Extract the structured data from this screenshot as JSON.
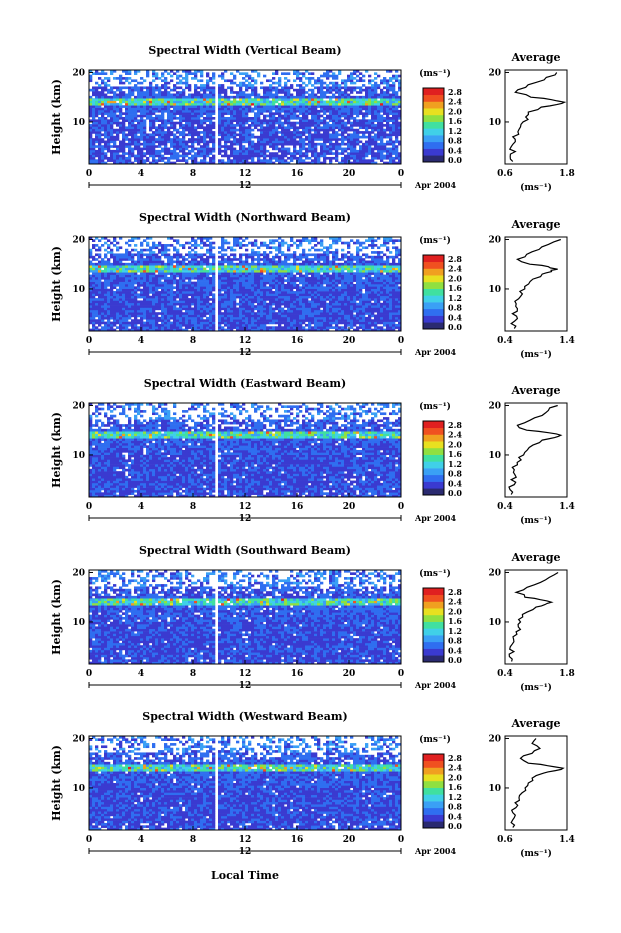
{
  "figure": {
    "xlabel": "Local Time",
    "ylabel": "Height (km)",
    "unit_label": "(ms⁻¹)",
    "date_label": "Apr 2004",
    "day_label": "12",
    "avg_title": "Average",
    "colorbar_ticks": [
      "2.8",
      "2.4",
      "2.0",
      "1.6",
      "1.2",
      "0.8",
      "0.4",
      "0.0"
    ],
    "colormap": [
      "#2a2a70",
      "#3a3ad0",
      "#2f6ef0",
      "#3aa0f5",
      "#40d0e8",
      "#40e0a0",
      "#90e040",
      "#e8e020",
      "#f0a020",
      "#f05020",
      "#e02020"
    ]
  },
  "chart_data": [
    {
      "type": "heatmap",
      "title": "Spectral Width (Vertical Beam)",
      "xlabel": "Local Time",
      "ylabel": "Height (km)",
      "xlim": [
        0,
        24
      ],
      "ylim": [
        1.5,
        20.5
      ],
      "x_ticks": [
        "0",
        "4",
        "8",
        "12",
        "16",
        "20",
        "0"
      ],
      "y_ticks": [
        "20",
        "10"
      ],
      "colorbar": {
        "label": "(ms⁻¹)",
        "range": [
          0.0,
          2.8
        ]
      },
      "gaps_hours": [
        [
          0.6,
          0.8
        ],
        [
          9.8,
          10.0
        ]
      ],
      "enhanced_layer_km": [
        13.5,
        15.0
      ],
      "average_profile": {
        "title": "Average",
        "xlim": [
          0.6,
          1.8
        ],
        "x_ticks": [
          "0.6",
          "1.8"
        ],
        "xlabel": "(ms⁻¹)",
        "height_km": [
          2,
          3,
          4,
          5,
          6,
          7,
          8,
          9,
          10,
          11,
          12,
          13,
          13.5,
          14,
          14.5,
          15,
          16,
          17,
          18,
          19,
          20
        ],
        "value": [
          0.75,
          0.7,
          0.8,
          0.72,
          0.8,
          0.75,
          0.85,
          0.9,
          0.95,
          1.0,
          1.05,
          1.3,
          1.6,
          1.75,
          1.5,
          1.1,
          0.8,
          1.0,
          1.2,
          1.4,
          1.6
        ]
      }
    },
    {
      "type": "heatmap",
      "title": "Spectral Width (Northward Beam)",
      "xlabel": "Local Time",
      "ylabel": "Height (km)",
      "xlim": [
        0,
        24
      ],
      "ylim": [
        1.5,
        20.5
      ],
      "x_ticks": [
        "0",
        "4",
        "8",
        "12",
        "16",
        "20",
        "0"
      ],
      "y_ticks": [
        "20",
        "10"
      ],
      "colorbar": {
        "label": "(ms⁻¹)",
        "range": [
          0.0,
          2.8
        ]
      },
      "gaps_hours": [
        [
          0.6,
          0.8
        ],
        [
          9.8,
          10.0
        ]
      ],
      "enhanced_layer_km": [
        13.5,
        15.0
      ],
      "average_profile": {
        "title": "Average",
        "xlim": [
          0.4,
          1.4
        ],
        "x_ticks": [
          "0.4",
          "1.4"
        ],
        "xlabel": "(ms⁻¹)",
        "height_km": [
          2,
          3,
          4,
          5,
          6,
          7,
          8,
          9,
          10,
          11,
          12,
          13,
          13.5,
          14,
          14.5,
          15,
          16,
          17,
          18,
          19,
          20
        ],
        "value": [
          0.55,
          0.5,
          0.6,
          0.52,
          0.6,
          0.58,
          0.62,
          0.68,
          0.72,
          0.78,
          0.85,
          1.0,
          1.15,
          1.25,
          1.1,
          0.8,
          0.6,
          0.75,
          0.95,
          1.1,
          1.3
        ]
      }
    },
    {
      "type": "heatmap",
      "title": "Spectral Width (Eastward Beam)",
      "xlabel": "Local Time",
      "ylabel": "Height (km)",
      "xlim": [
        0,
        24
      ],
      "ylim": [
        1.5,
        20.5
      ],
      "x_ticks": [
        "0",
        "4",
        "8",
        "12",
        "16",
        "20",
        "0"
      ],
      "y_ticks": [
        "20",
        "10"
      ],
      "colorbar": {
        "label": "(ms⁻¹)",
        "range": [
          0.0,
          2.8
        ]
      },
      "gaps_hours": [
        [
          0.6,
          0.8
        ],
        [
          9.8,
          10.0
        ]
      ],
      "enhanced_layer_km": [
        13.5,
        15.0
      ],
      "average_profile": {
        "title": "Average",
        "xlim": [
          0.4,
          1.4
        ],
        "x_ticks": [
          "0.4",
          "1.4"
        ],
        "xlabel": "(ms⁻¹)",
        "height_km": [
          2,
          3,
          4,
          5,
          6,
          7,
          8,
          9,
          10,
          11,
          12,
          13,
          13.5,
          14,
          14.5,
          15,
          16,
          17,
          18,
          19,
          20
        ],
        "value": [
          0.5,
          0.48,
          0.55,
          0.5,
          0.56,
          0.55,
          0.6,
          0.66,
          0.7,
          0.76,
          0.85,
          1.0,
          1.2,
          1.3,
          1.1,
          0.75,
          0.6,
          0.8,
          1.0,
          1.1,
          1.25
        ]
      }
    },
    {
      "type": "heatmap",
      "title": "Spectral Width (Southward Beam)",
      "xlabel": "Local Time",
      "ylabel": "Height (km)",
      "xlim": [
        0,
        24
      ],
      "ylim": [
        1.5,
        20.5
      ],
      "x_ticks": [
        "0",
        "4",
        "8",
        "12",
        "16",
        "20",
        "0"
      ],
      "y_ticks": [
        "20",
        "10"
      ],
      "colorbar": {
        "label": "(ms⁻¹)",
        "range": [
          0.0,
          2.8
        ]
      },
      "gaps_hours": [
        [
          0.6,
          0.8
        ],
        [
          9.8,
          10.0
        ]
      ],
      "enhanced_layer_km": [
        13.5,
        15.0
      ],
      "average_profile": {
        "title": "Average",
        "xlim": [
          0.4,
          1.8
        ],
        "x_ticks": [
          "0.4",
          "1.8"
        ],
        "xlabel": "(ms⁻¹)",
        "height_km": [
          2,
          3,
          4,
          5,
          6,
          7,
          8,
          9,
          10,
          11,
          12,
          13,
          13.5,
          14,
          14.5,
          15,
          16,
          17,
          18,
          19,
          20
        ],
        "value": [
          0.55,
          0.5,
          0.6,
          0.52,
          0.6,
          0.58,
          0.65,
          0.7,
          0.75,
          0.8,
          0.9,
          1.1,
          1.3,
          1.45,
          1.2,
          0.85,
          0.65,
          0.9,
          1.2,
          1.4,
          1.6
        ]
      }
    },
    {
      "type": "heatmap",
      "title": "Spectral Width (Westward Beam)",
      "xlabel": "Local Time",
      "ylabel": "Height (km)",
      "xlim": [
        0,
        24
      ],
      "ylim": [
        1.5,
        20.5
      ],
      "x_ticks": [
        "0",
        "4",
        "8",
        "12",
        "16",
        "20",
        "0"
      ],
      "y_ticks": [
        "20",
        "10"
      ],
      "colorbar": {
        "label": "(ms⁻¹)",
        "range": [
          0.0,
          2.8
        ]
      },
      "gaps_hours": [
        [
          0.6,
          0.8
        ],
        [
          9.8,
          10.0
        ]
      ],
      "enhanced_layer_km": [
        13.5,
        15.0
      ],
      "average_profile": {
        "title": "Average",
        "xlim": [
          0.6,
          1.4
        ],
        "x_ticks": [
          "0.6",
          "1.4"
        ],
        "xlabel": "(ms⁻¹)",
        "height_km": [
          2,
          3,
          4,
          5,
          6,
          7,
          8,
          9,
          10,
          11,
          12,
          13,
          13.5,
          14,
          14.5,
          15,
          16,
          17,
          18,
          19,
          20
        ],
        "value": [
          0.7,
          0.68,
          0.72,
          0.7,
          0.74,
          0.73,
          0.78,
          0.82,
          0.86,
          0.9,
          0.95,
          1.1,
          1.25,
          1.35,
          1.15,
          0.9,
          0.8,
          0.95,
          1.05,
          0.95,
          1.0
        ]
      }
    }
  ]
}
